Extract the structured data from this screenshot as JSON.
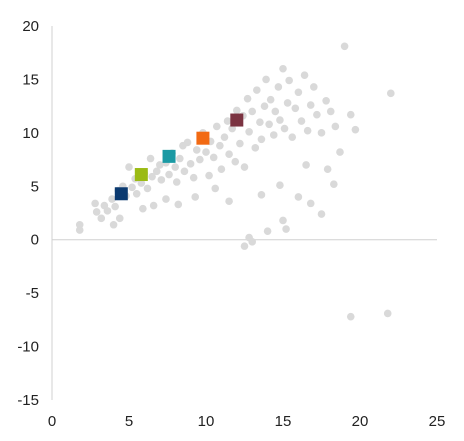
{
  "chart_data": {
    "type": "scatter",
    "title": "",
    "xlabel": "",
    "ylabel": "",
    "xlim": [
      0,
      25
    ],
    "ylim": [
      -15,
      20
    ],
    "x_ticks": [
      0,
      5,
      10,
      15,
      20,
      25
    ],
    "y_ticks": [
      -15,
      -10,
      -5,
      0,
      5,
      10,
      15,
      20
    ],
    "x_tick_labels": [
      "0",
      "5",
      "10",
      "15",
      "20",
      "25"
    ],
    "y_tick_labels": [
      "-15",
      "-10",
      "-5",
      "0",
      "5",
      "10",
      "15",
      "20"
    ],
    "grid": false,
    "legend": "none",
    "colors": {
      "background_points": "#d9d9d9",
      "axis": "#d0d0d0",
      "text": "#222222"
    },
    "series": [
      {
        "marker": "circle",
        "color": "#d9d9d9",
        "points": [
          [
            1.8,
            1.4
          ],
          [
            1.8,
            0.9
          ],
          [
            2.8,
            3.4
          ],
          [
            2.9,
            2.6
          ],
          [
            3.2,
            2.0
          ],
          [
            3.4,
            3.2
          ],
          [
            3.6,
            2.7
          ],
          [
            3.9,
            3.8
          ],
          [
            4.1,
            3.1
          ],
          [
            4.3,
            4.6
          ],
          [
            4.6,
            5.0
          ],
          [
            4.8,
            4.1
          ],
          [
            5.0,
            6.8
          ],
          [
            5.2,
            4.9
          ],
          [
            5.4,
            5.7
          ],
          [
            5.5,
            4.3
          ],
          [
            5.8,
            5.3
          ],
          [
            6.0,
            6.2
          ],
          [
            6.2,
            4.8
          ],
          [
            6.4,
            7.6
          ],
          [
            6.5,
            5.9
          ],
          [
            6.8,
            6.4
          ],
          [
            7.0,
            7.0
          ],
          [
            7.1,
            5.6
          ],
          [
            7.4,
            7.2
          ],
          [
            7.6,
            6.1
          ],
          [
            7.8,
            8.1
          ],
          [
            8.0,
            6.8
          ],
          [
            8.1,
            5.4
          ],
          [
            8.3,
            7.6
          ],
          [
            8.5,
            8.8
          ],
          [
            8.6,
            6.4
          ],
          [
            8.8,
            9.1
          ],
          [
            9.0,
            7.1
          ],
          [
            9.2,
            5.8
          ],
          [
            9.4,
            8.4
          ],
          [
            9.6,
            7.5
          ],
          [
            9.8,
            10.0
          ],
          [
            10.0,
            8.2
          ],
          [
            10.2,
            6.0
          ],
          [
            10.3,
            9.2
          ],
          [
            10.5,
            7.7
          ],
          [
            10.7,
            10.6
          ],
          [
            10.9,
            8.8
          ],
          [
            11.0,
            6.6
          ],
          [
            11.2,
            9.6
          ],
          [
            11.4,
            11.1
          ],
          [
            11.5,
            8.0
          ],
          [
            11.7,
            10.4
          ],
          [
            11.9,
            7.3
          ],
          [
            12.0,
            12.1
          ],
          [
            12.2,
            9.0
          ],
          [
            12.4,
            11.6
          ],
          [
            12.5,
            6.8
          ],
          [
            12.7,
            13.2
          ],
          [
            12.8,
            10.1
          ],
          [
            13.0,
            12.0
          ],
          [
            13.2,
            8.6
          ],
          [
            13.3,
            14.0
          ],
          [
            13.5,
            11.0
          ],
          [
            13.6,
            9.4
          ],
          [
            13.8,
            12.5
          ],
          [
            13.9,
            15.0
          ],
          [
            14.1,
            10.8
          ],
          [
            14.2,
            13.1
          ],
          [
            14.4,
            9.8
          ],
          [
            14.5,
            12.0
          ],
          [
            14.7,
            14.3
          ],
          [
            14.8,
            11.2
          ],
          [
            15.0,
            16.0
          ],
          [
            15.1,
            10.4
          ],
          [
            15.3,
            12.8
          ],
          [
            15.4,
            14.9
          ],
          [
            15.6,
            9.6
          ],
          [
            15.8,
            12.3
          ],
          [
            16.0,
            13.8
          ],
          [
            16.2,
            11.1
          ],
          [
            16.4,
            15.4
          ],
          [
            16.6,
            10.2
          ],
          [
            16.8,
            12.6
          ],
          [
            17.0,
            14.3
          ],
          [
            17.2,
            11.7
          ],
          [
            17.5,
            10.0
          ],
          [
            17.8,
            13.0
          ],
          [
            18.1,
            12.0
          ],
          [
            18.4,
            10.6
          ],
          [
            18.7,
            8.2
          ],
          [
            19.0,
            18.1
          ],
          [
            19.4,
            11.7
          ],
          [
            19.7,
            10.3
          ],
          [
            22.0,
            13.7
          ],
          [
            19.4,
            -7.2
          ],
          [
            21.8,
            -6.9
          ],
          [
            12.5,
            -0.6
          ],
          [
            12.8,
            0.2
          ],
          [
            13.0,
            -0.2
          ],
          [
            14.0,
            0.8
          ],
          [
            15.0,
            1.8
          ],
          [
            15.2,
            1.0
          ],
          [
            16.0,
            4.0
          ],
          [
            16.8,
            3.4
          ],
          [
            17.5,
            2.4
          ],
          [
            18.3,
            5.2
          ],
          [
            17.9,
            6.6
          ],
          [
            16.5,
            7.0
          ],
          [
            14.8,
            5.1
          ],
          [
            13.6,
            4.2
          ],
          [
            11.5,
            3.6
          ],
          [
            10.6,
            4.8
          ],
          [
            9.3,
            4.0
          ],
          [
            8.2,
            3.3
          ],
          [
            7.4,
            3.8
          ],
          [
            6.6,
            3.2
          ],
          [
            5.9,
            2.9
          ],
          [
            4.4,
            2.0
          ],
          [
            4.0,
            1.4
          ]
        ]
      },
      {
        "marker": "square",
        "points": [
          {
            "x": 4.5,
            "y": 4.3,
            "color": "#0b3a70"
          },
          {
            "x": 5.8,
            "y": 6.1,
            "color": "#9bbb14"
          },
          {
            "x": 7.6,
            "y": 7.8,
            "color": "#1b9aa4"
          },
          {
            "x": 9.8,
            "y": 9.5,
            "color": "#f26a13"
          },
          {
            "x": 12.0,
            "y": 11.2,
            "color": "#7b3341"
          }
        ]
      }
    ]
  }
}
